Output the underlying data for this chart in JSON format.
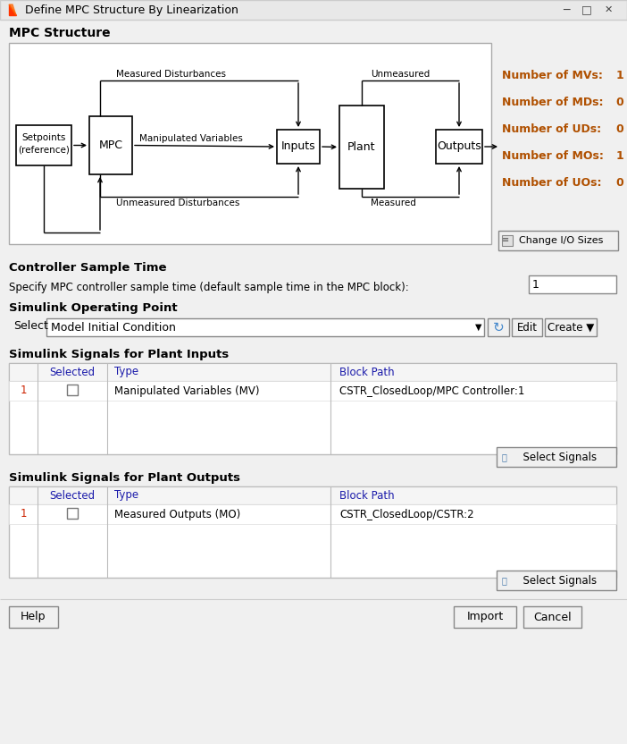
{
  "title": "Define MPC Structure By Linearization",
  "bg_color": "#f0f0f0",
  "white": "#ffffff",
  "border_color": "#aaaaaa",
  "dark_border": "#555555",
  "blue_text": "#1a1aaa",
  "red_num_color": "#b05000",
  "section_title_color": "#000000",
  "mpc_structure_title": "MPC Structure",
  "controller_sample_time_title": "Controller Sample Time",
  "sample_time_label": "Specify MPC controller sample time (default sample time in the MPC block):",
  "sample_time_value": "1",
  "operating_point_title": "Simulink Operating Point",
  "select_label": "Select",
  "dropdown_text": "Model Initial Condition",
  "plant_inputs_title": "Simulink Signals for Plant Inputs",
  "plant_outputs_title": "Simulink Signals for Plant Outputs",
  "table_headers": [
    "Selected",
    "Type",
    "Block Path"
  ],
  "inputs_row": [
    "1",
    "Manipulated Variables (MV)",
    "CSTR_ClosedLoop/MPC Controller:1"
  ],
  "outputs_row": [
    "1",
    "Measured Outputs (MO)",
    "CSTR_ClosedLoop/CSTR:2"
  ],
  "mvs_label": "Number of MVs:",
  "mvs_value": "1",
  "mds_label": "Number of MDs:",
  "mds_value": "0",
  "uds_label": "Number of UDs:",
  "uds_value": "0",
  "mos_label": "Number of MOs:",
  "mos_value": "1",
  "uos_label": "Number of UOs:",
  "uos_value": "0",
  "change_io_btn": "  Change I/O Sizes",
  "select_signals_btn": "  Select Signals",
  "help_btn": "Help",
  "import_btn": "Import",
  "cancel_btn": "Cancel",
  "edit_btn": "Edit",
  "create_btn": "Create ▼"
}
